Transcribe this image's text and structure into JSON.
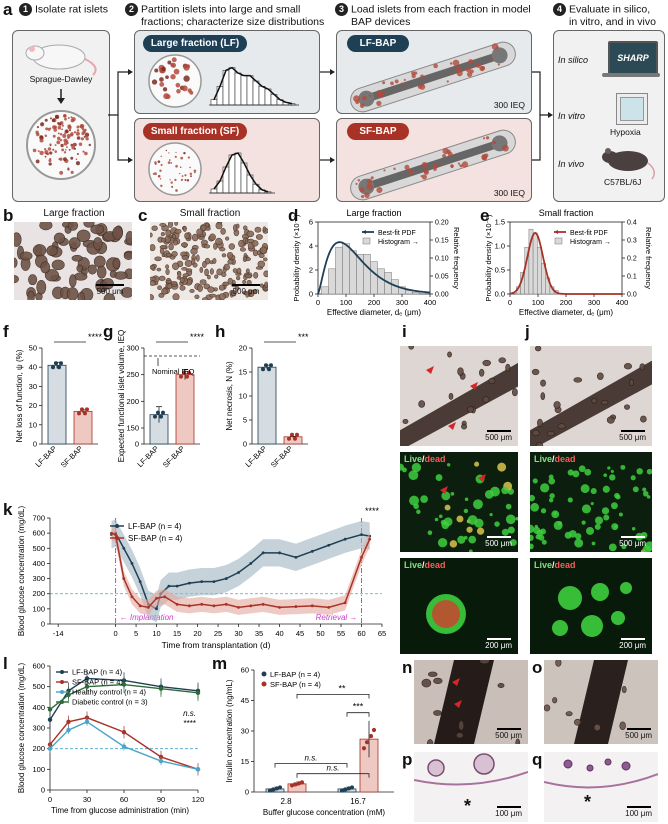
{
  "panel_a": {
    "letter": "a",
    "steps": [
      {
        "num": "1",
        "text": "Isolate rat islets"
      },
      {
        "num": "2",
        "text1": "Partition islets into large and small",
        "text2": "fractions; characterize size distributions"
      },
      {
        "num": "3",
        "text1": "Load islets from each fraction in model",
        "text2": "BAP devices"
      },
      {
        "num": "4",
        "text1": "Evaluate in silico,",
        "text2": "in vitro, and in vivo"
      }
    ],
    "rat_label": "Sprague-Dawley",
    "lf_label": "Large fraction (LF)",
    "sf_label": "Small fraction (SF)",
    "lf_device": "LF-BAP",
    "sf_device": "SF-BAP",
    "ieq_lf": "300 IEQ",
    "ieq_sf": "300 IEQ",
    "in_silico": "In silico",
    "in_vitro": "In vitro",
    "in_vivo": "In vivo",
    "sharp": "SHARP",
    "hypoxia": "Hypoxia",
    "mouse": "C57BL/6J",
    "colors": {
      "lf": "#1f3f55",
      "sf": "#a93226",
      "lf_fill": "#e6eaec",
      "sf_fill": "#f3e2df"
    }
  },
  "panel_b": {
    "letter": "b",
    "title": "Large fraction",
    "scale": "500 μm"
  },
  "panel_c": {
    "letter": "c",
    "title": "Small fraction",
    "scale": "500 μm"
  },
  "panel_d": {
    "letter": "d",
    "title": "Large fraction",
    "legend1": "Best-fit PDF",
    "legend2": "Histogram",
    "ylabel": "Probability density (×10⁻³)",
    "y2label": "Relative frequency",
    "xlabel": "Effective diameter, dₑ (μm)"
  },
  "panel_e": {
    "letter": "e",
    "title": "Small fraction",
    "legend1": "Best-fit PDF",
    "legend2": "Histogram",
    "ylabel": "Probability density (×10⁻²)",
    "y2label": "Relative frequency",
    "xlabel": "Effective diameter, dₑ (μm)"
  },
  "panel_f": {
    "letter": "f",
    "ylabel": "Net loss of function, ψ (%)",
    "sig": "****"
  },
  "panel_g": {
    "letter": "g",
    "ylabel": "Expected functional islet volume, IEQ",
    "sig": "****",
    "note": "Nominal IEQ"
  },
  "panel_h": {
    "letter": "h",
    "ylabel": "Net necrosis, N (%)",
    "sig": "***"
  },
  "panel_i": {
    "letter": "i",
    "scale1": "500 μm",
    "scale2": "500 μm",
    "scale3": "200 μm",
    "live": "Live",
    "slash": "/",
    "dead": "dead"
  },
  "panel_j": {
    "letter": "j",
    "scale1": "500 μm",
    "scale2": "500 μm",
    "scale3": "200 μm",
    "live": "Live",
    "slash": "/",
    "dead": "dead"
  },
  "panel_k": {
    "letter": "k",
    "ylabel": "Blood glucose concentration (mg/dL)",
    "xlabel": "Time from transplantation (d)",
    "legend1": "LF-BAP (n = 4)",
    "legend2": "SF-BAP (n = 4)",
    "implant": "Implantation",
    "retrieval": "Retrieval",
    "sig": "****"
  },
  "panel_l": {
    "letter": "l",
    "ylabel": "Blood glucose concentration (mg/dL)",
    "xlabel": "Time from glucose administration (min)",
    "legend": [
      "LF-BAP (n = 4)",
      "SF-BAP (n = 4)",
      "Healthy control (n = 4)",
      "Diabetic control (n = 3)"
    ],
    "ns": "n.s.",
    "sig": "****"
  },
  "panel_m": {
    "letter": "m",
    "ylabel": "Insulin concentration (ng/mL)",
    "xlabel": "Buffer glucose concentration (mM)",
    "legend1": "LF-BAP (n = 4)",
    "legend2": "SF-BAP (n = 4)",
    "ns1": "n.s.",
    "ns2": "n.s.",
    "sig1": "**",
    "sig2": "***"
  },
  "panel_n": {
    "letter": "n",
    "scale": "500 μm"
  },
  "panel_o": {
    "letter": "o",
    "scale": "500 μm"
  },
  "panel_p": {
    "letter": "p",
    "scale": "100 μm",
    "star": "*"
  },
  "panel_q": {
    "letter": "q",
    "scale": "100 μm",
    "star": "*"
  },
  "chart_data": [
    {
      "panel": "d",
      "type": "bar",
      "title": "Large fraction",
      "xlabel": "Effective diameter, dₑ (μm)",
      "ylabel": "Probability density (×10⁻³)",
      "y2label": "Relative frequency",
      "x": [
        25,
        50,
        75,
        100,
        125,
        150,
        175,
        200,
        225,
        250,
        275,
        300,
        325,
        350
      ],
      "hist_values": [
        0.02,
        0.07,
        0.13,
        0.14,
        0.12,
        0.11,
        0.11,
        0.09,
        0.07,
        0.06,
        0.04,
        0.02,
        0.01,
        0.005
      ],
      "xlim": [
        0,
        400
      ],
      "ylim": [
        0,
        6
      ],
      "y2lim": [
        0,
        0.2
      ],
      "xticks": [
        "0",
        "100",
        "200",
        "300",
        "400"
      ],
      "yticks": [
        "0",
        "2",
        "4",
        "6"
      ],
      "y2ticks": [
        "0.00",
        "0.05",
        "0.10",
        "0.15",
        "0.20"
      ]
    },
    {
      "panel": "e",
      "type": "bar",
      "title": "Small fraction",
      "xlabel": "Effective diameter, dₑ (μm)",
      "ylabel": "Probability density (×10⁻²)",
      "y2label": "Relative frequency",
      "x": [
        30,
        45,
        60,
        75,
        90,
        105,
        120,
        135,
        150,
        165
      ],
      "hist_values": [
        0.04,
        0.12,
        0.26,
        0.36,
        0.34,
        0.26,
        0.17,
        0.09,
        0.04,
        0.02
      ],
      "xlim": [
        0,
        400
      ],
      "ylim": [
        0,
        1.5
      ],
      "y2lim": [
        0,
        0.4
      ],
      "xticks": [
        "0",
        "100",
        "200",
        "300",
        "400"
      ],
      "yticks": [
        "0.0",
        "0.5",
        "1.0",
        "1.5"
      ],
      "y2ticks": [
        "0.0",
        "0.1",
        "0.2",
        "0.3",
        "0.4"
      ]
    },
    {
      "panel": "f",
      "type": "bar",
      "categories": [
        "LF-BAP",
        "SF-BAP"
      ],
      "values": [
        41,
        17
      ],
      "ylim": [
        0,
        50
      ],
      "yticks": [
        "0",
        "10",
        "20",
        "30",
        "40",
        "50"
      ]
    },
    {
      "panel": "g",
      "type": "bar",
      "categories": [
        "LF-BAP",
        "SF-BAP"
      ],
      "values": [
        175,
        250
      ],
      "ylim": [
        0,
        300
      ],
      "yticks": [
        "0",
        "150",
        "200",
        "250",
        "300"
      ]
    },
    {
      "panel": "h",
      "type": "bar",
      "categories": [
        "LF-BAP",
        "SF-BAP"
      ],
      "values": [
        16,
        1.5
      ],
      "ylim": [
        0,
        20
      ],
      "yticks": [
        "0",
        "5",
        "10",
        "15",
        "20"
      ]
    },
    {
      "panel": "k",
      "type": "line",
      "xlabel": "Time from transplantation (d)",
      "ylabel": "Blood glucose concentration (mg/dL)",
      "xticks": [
        "-14",
        "0",
        "5",
        "10",
        "15",
        "20",
        "25",
        "30",
        "35",
        "40",
        "45",
        "50",
        "55",
        "60",
        "65"
      ],
      "yticks": [
        "0",
        "100",
        "200",
        "300",
        "400",
        "500",
        "600",
        "700"
      ],
      "xlim": [
        -16,
        65
      ],
      "ylim": [
        0,
        700
      ],
      "series": [
        {
          "name": "LF-BAP (n = 4)",
          "x": [
            -1,
            0,
            2,
            4,
            6,
            8,
            10,
            11,
            13,
            15,
            18,
            21,
            24,
            27,
            30,
            33,
            36,
            40,
            44,
            48,
            52,
            56,
            60,
            62
          ],
          "values": [
            590,
            600,
            500,
            400,
            280,
            130,
            100,
            200,
            250,
            250,
            270,
            280,
            280,
            300,
            340,
            400,
            470,
            470,
            440,
            480,
            520,
            560,
            590,
            580
          ]
        },
        {
          "name": "SF-BAP (n = 4)",
          "x": [
            -1,
            0,
            2,
            4,
            6,
            8,
            10,
            12,
            15,
            18,
            21,
            24,
            27,
            30,
            33,
            36,
            40,
            44,
            48,
            52,
            56,
            60,
            62
          ],
          "values": [
            600,
            590,
            300,
            180,
            120,
            110,
            170,
            180,
            130,
            120,
            130,
            120,
            130,
            110,
            120,
            130,
            110,
            115,
            120,
            110,
            140,
            440,
            560
          ]
        }
      ]
    },
    {
      "panel": "l",
      "type": "line",
      "xlabel": "Time from glucose administration (min)",
      "ylabel": "Blood glucose concentration (mg/dL)",
      "x": [
        0,
        15,
        30,
        60,
        90,
        120
      ],
      "xticks": [
        "0",
        "30",
        "60",
        "90",
        "120"
      ],
      "yticks": [
        "0",
        "100",
        "200",
        "300",
        "400",
        "500",
        "600"
      ],
      "ylim": [
        0,
        600
      ],
      "series": [
        {
          "name": "LF-BAP (n = 4)",
          "values": [
            340,
            480,
            540,
            530,
            500,
            480
          ]
        },
        {
          "name": "SF-BAP (n = 4)",
          "values": [
            220,
            330,
            350,
            280,
            160,
            100
          ]
        },
        {
          "name": "Healthy control (n = 4)",
          "values": [
            200,
            290,
            330,
            210,
            140,
            100
          ]
        },
        {
          "name": "Diabetic control (n = 3)",
          "values": [
            390,
            460,
            500,
            510,
            490,
            470
          ]
        }
      ]
    },
    {
      "panel": "m",
      "type": "bar",
      "xlabel": "Buffer glucose concentration (mM)",
      "ylabel": "Insulin concentration (ng/mL)",
      "categories": [
        "2.8",
        "16.7"
      ],
      "yticks": [
        "0",
        "15",
        "30",
        "45",
        "60"
      ],
      "ylim": [
        0,
        60
      ],
      "series": [
        {
          "name": "LF-BAP (n = 4)",
          "values": [
            1.5,
            1.5
          ]
        },
        {
          "name": "SF-BAP (n = 4)",
          "values": [
            4,
            26
          ]
        }
      ]
    }
  ]
}
